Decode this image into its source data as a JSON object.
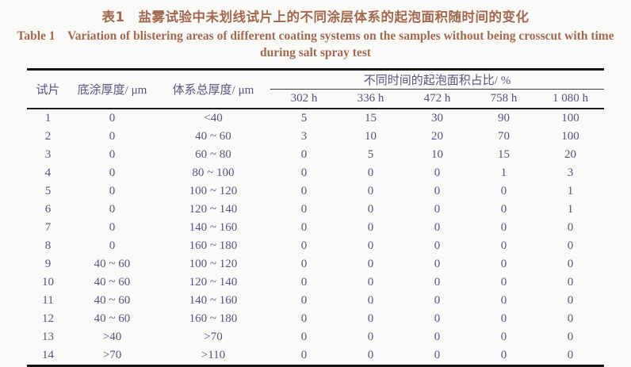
{
  "title": {
    "zh": "表1　盐雾试验中未划线试片上的不同涂层体系的起泡面积随时间的变化",
    "en": "Table 1　Variation of blistering areas of different coating systems on the samples without being crosscut with time during salt spray test"
  },
  "colors": {
    "title_text": "#a4684e",
    "table_text": "#5a5280",
    "rule": "#141414",
    "background": "#fafaf8"
  },
  "table": {
    "headers": {
      "sample": "试片",
      "primer_thickness": "底涂厚度/ μm",
      "system_thickness": "体系总厚度/ μm",
      "span": "不同时间的起泡面积占比/ %",
      "times": [
        "302 h",
        "336 h",
        "472 h",
        "758 h",
        "1 080 h"
      ]
    },
    "rows": [
      [
        "1",
        "0",
        "<40",
        "5",
        "15",
        "30",
        "90",
        "100"
      ],
      [
        "2",
        "0",
        "40 ~ 60",
        "3",
        "10",
        "20",
        "70",
        "100"
      ],
      [
        "3",
        "0",
        "60 ~ 80",
        "0",
        "5",
        "10",
        "15",
        "20"
      ],
      [
        "4",
        "0",
        "80 ~ 100",
        "0",
        "0",
        "0",
        "1",
        "3"
      ],
      [
        "5",
        "0",
        "100 ~ 120",
        "0",
        "0",
        "0",
        "0",
        "1"
      ],
      [
        "6",
        "0",
        "120 ~ 140",
        "0",
        "0",
        "0",
        "0",
        "1"
      ],
      [
        "7",
        "0",
        "140 ~ 160",
        "0",
        "0",
        "0",
        "0",
        "0"
      ],
      [
        "8",
        "0",
        "160 ~ 180",
        "0",
        "0",
        "0",
        "0",
        "0"
      ],
      [
        "9",
        "40 ~ 60",
        "100 ~ 120",
        "0",
        "0",
        "0",
        "0",
        "0"
      ],
      [
        "10",
        "40 ~ 60",
        "120 ~ 140",
        "0",
        "0",
        "0",
        "0",
        "0"
      ],
      [
        "11",
        "40 ~ 60",
        "140 ~ 160",
        "0",
        "0",
        "0",
        "0",
        "0"
      ],
      [
        "12",
        "40 ~ 60",
        "160 ~ 180",
        "0",
        "0",
        "0",
        "0",
        "0"
      ],
      [
        "13",
        ">40",
        ">70",
        "0",
        "0",
        "0",
        "0",
        "0"
      ],
      [
        "14",
        ">70",
        ">110",
        "0",
        "0",
        "0",
        "0",
        "0"
      ]
    ]
  }
}
